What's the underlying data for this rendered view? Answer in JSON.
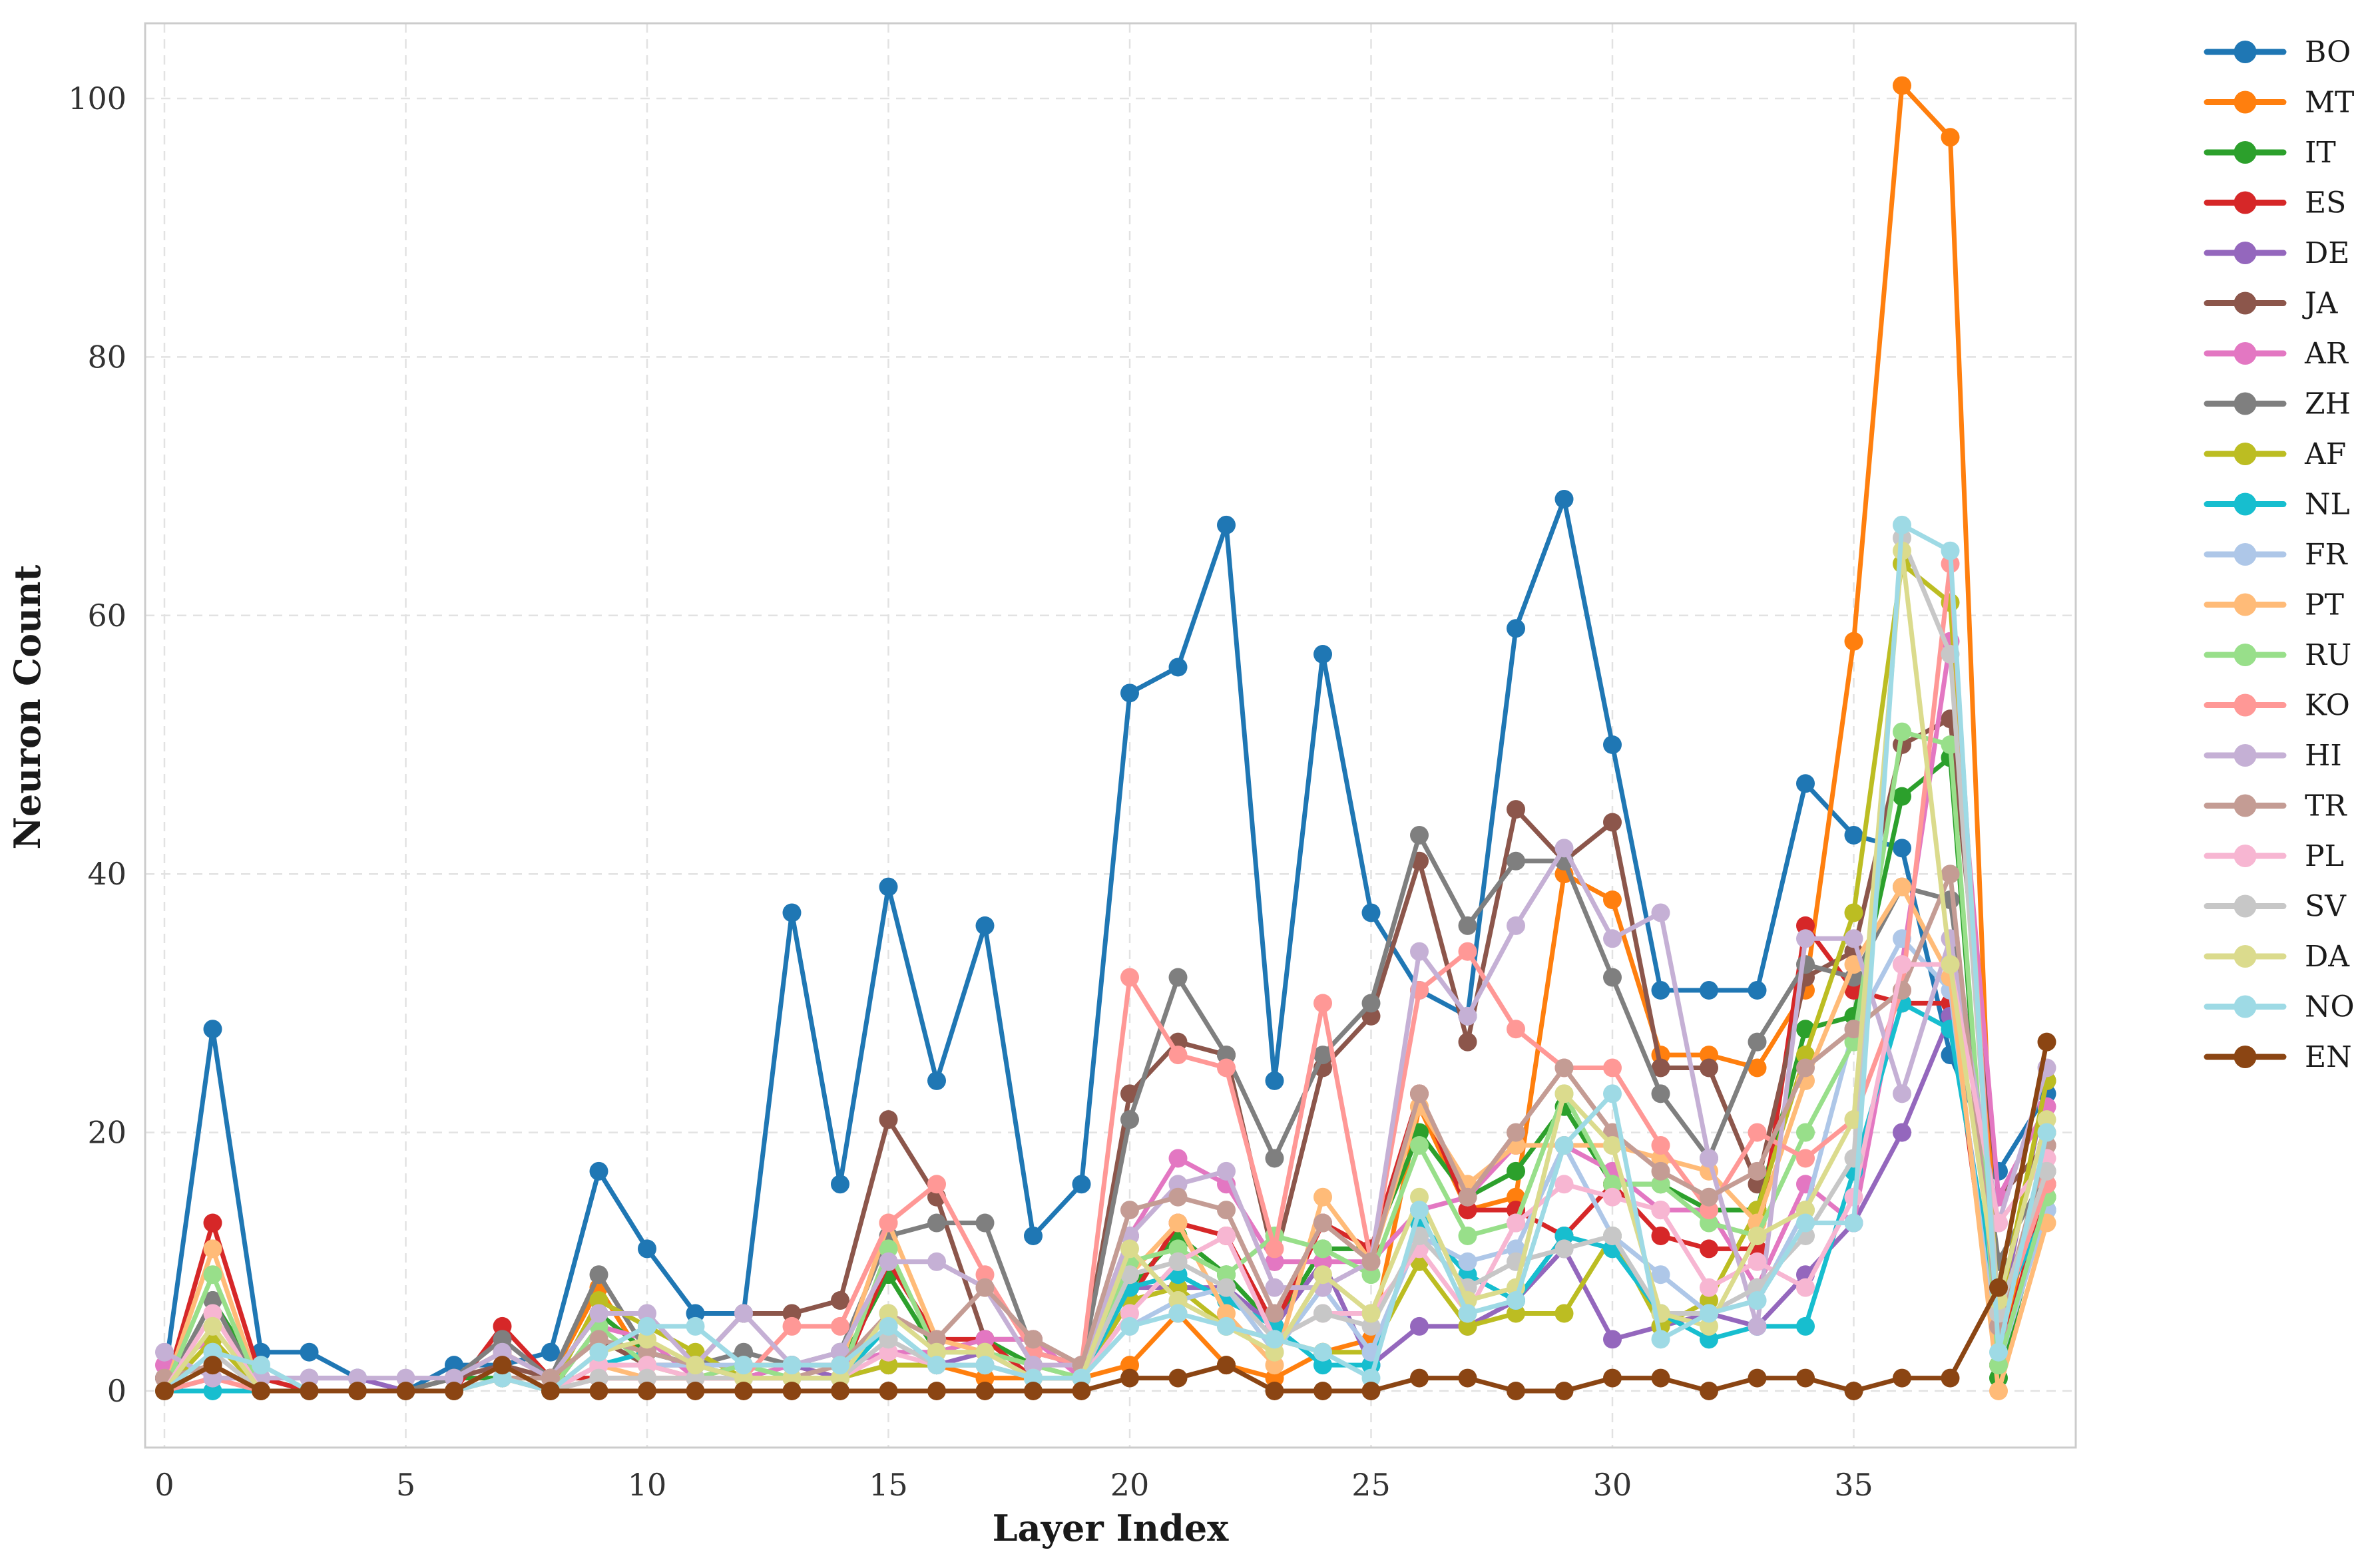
{
  "chart_data": {
    "type": "line",
    "title": "",
    "xlabel": "Layer Index",
    "ylabel": "Neuron Count",
    "x": [
      0,
      1,
      2,
      3,
      4,
      5,
      6,
      7,
      8,
      9,
      10,
      11,
      12,
      13,
      14,
      15,
      16,
      17,
      18,
      19,
      20,
      21,
      22,
      23,
      24,
      25,
      26,
      27,
      28,
      29,
      30,
      31,
      32,
      33,
      34,
      35,
      36,
      37,
      38,
      39
    ],
    "xticks": [
      0,
      5,
      10,
      15,
      20,
      25,
      30,
      35
    ],
    "yticks": [
      0,
      20,
      40,
      60,
      80,
      100
    ],
    "ylim": [
      -6,
      106
    ],
    "grid": "dashed",
    "legend_position": "right",
    "series": [
      {
        "name": "BO",
        "color": "#1f77b4",
        "values": [
          1,
          28,
          3,
          3,
          1,
          0,
          2,
          2,
          3,
          17,
          11,
          6,
          6,
          37,
          16,
          39,
          24,
          36,
          12,
          16,
          54,
          56,
          67,
          24,
          57,
          37,
          31,
          29,
          59,
          69,
          50,
          31,
          31,
          31,
          47,
          43,
          42,
          26,
          17,
          23
        ]
      },
      {
        "name": "MT",
        "color": "#ff7f0e",
        "values": [
          0,
          2,
          0,
          0,
          0,
          0,
          1,
          3,
          1,
          8,
          2,
          1,
          2,
          2,
          1,
          2,
          2,
          1,
          1,
          1,
          2,
          6,
          2,
          1,
          3,
          4,
          22,
          14,
          15,
          40,
          38,
          26,
          26,
          25,
          31,
          58,
          101,
          97,
          2,
          20
        ]
      },
      {
        "name": "IT",
        "color": "#2ca02c",
        "values": [
          0,
          7,
          1,
          0,
          0,
          0,
          1,
          1,
          1,
          6,
          3,
          2,
          1,
          2,
          2,
          9,
          3,
          4,
          2,
          1,
          8,
          12,
          9,
          5,
          11,
          11,
          20,
          15,
          17,
          22,
          16,
          16,
          14,
          14,
          28,
          29,
          46,
          49,
          1,
          15
        ]
      },
      {
        "name": "ES",
        "color": "#d62728",
        "values": [
          0,
          13,
          1,
          0,
          0,
          0,
          0,
          5,
          1,
          1,
          1,
          1,
          1,
          2,
          1,
          10,
          4,
          4,
          1,
          1,
          7,
          13,
          12,
          5,
          13,
          11,
          23,
          14,
          14,
          12,
          16,
          12,
          11,
          11,
          36,
          31,
          30,
          30,
          2,
          16
        ]
      },
      {
        "name": "DE",
        "color": "#9467bd",
        "values": [
          0,
          1,
          1,
          1,
          1,
          0,
          0,
          2,
          0,
          1,
          1,
          1,
          1,
          2,
          1,
          2,
          2,
          3,
          1,
          1,
          8,
          8,
          8,
          5,
          10,
          2,
          5,
          5,
          7,
          11,
          4,
          5,
          6,
          5,
          9,
          13,
          20,
          29,
          5,
          24
        ]
      },
      {
        "name": "JA",
        "color": "#8c564b",
        "values": [
          1,
          2,
          0,
          0,
          0,
          0,
          1,
          2,
          1,
          4,
          2,
          2,
          6,
          6,
          7,
          21,
          15,
          4,
          4,
          2,
          23,
          27,
          26,
          10,
          25,
          29,
          41,
          27,
          45,
          41,
          44,
          25,
          25,
          16,
          32,
          34,
          50,
          52,
          15,
          19
        ]
      },
      {
        "name": "AR",
        "color": "#e377c2",
        "values": [
          2,
          4,
          0,
          0,
          0,
          0,
          0,
          2,
          0,
          5,
          4,
          1,
          1,
          2,
          2,
          3,
          3,
          4,
          4,
          1,
          12,
          18,
          16,
          10,
          10,
          10,
          14,
          15,
          19,
          19,
          17,
          14,
          14,
          8,
          16,
          13,
          33,
          58,
          15,
          22
        ]
      },
      {
        "name": "ZH",
        "color": "#7f7f7f",
        "values": [
          0,
          7,
          0,
          0,
          0,
          0,
          1,
          4,
          1,
          9,
          3,
          2,
          3,
          2,
          3,
          12,
          13,
          13,
          3,
          2,
          21,
          32,
          26,
          18,
          26,
          30,
          43,
          36,
          41,
          41,
          32,
          23,
          18,
          27,
          33,
          32,
          39,
          38,
          10,
          17
        ]
      },
      {
        "name": "AF",
        "color": "#bcbd22",
        "values": [
          0,
          4,
          0,
          0,
          0,
          0,
          0,
          1,
          0,
          7,
          5,
          3,
          1,
          1,
          1,
          2,
          2,
          2,
          1,
          1,
          7,
          8,
          5,
          4,
          3,
          3,
          10,
          5,
          6,
          6,
          12,
          5,
          7,
          14,
          26,
          37,
          64,
          61,
          6,
          24
        ]
      },
      {
        "name": "NL",
        "color": "#17becf",
        "values": [
          0,
          0,
          0,
          0,
          0,
          0,
          0,
          1,
          0,
          2,
          3,
          2,
          1,
          1,
          1,
          5,
          2,
          2,
          1,
          1,
          8,
          9,
          7,
          5,
          2,
          2,
          13,
          9,
          7,
          12,
          11,
          6,
          4,
          5,
          5,
          17,
          30,
          28,
          6,
          14
        ]
      },
      {
        "name": "FR",
        "color": "#aec7e8",
        "values": [
          0,
          2,
          0,
          0,
          0,
          0,
          0,
          1,
          0,
          2,
          2,
          2,
          2,
          1,
          1,
          4,
          2,
          2,
          1,
          1,
          5,
          7,
          8,
          3,
          8,
          3,
          12,
          10,
          11,
          19,
          12,
          9,
          6,
          7,
          14,
          28,
          35,
          31,
          2,
          14
        ]
      },
      {
        "name": "PT",
        "color": "#ffbb78",
        "values": [
          0,
          11,
          0,
          0,
          0,
          0,
          0,
          1,
          0,
          2,
          1,
          1,
          1,
          1,
          2,
          13,
          4,
          3,
          2,
          1,
          9,
          13,
          6,
          2,
          15,
          10,
          22,
          16,
          19,
          19,
          19,
          18,
          17,
          13,
          24,
          33,
          39,
          32,
          0,
          13
        ]
      },
      {
        "name": "RU",
        "color": "#98df8a",
        "values": [
          0,
          9,
          0,
          0,
          0,
          0,
          0,
          1,
          0,
          5,
          2,
          1,
          2,
          1,
          1,
          11,
          3,
          3,
          2,
          1,
          10,
          11,
          9,
          12,
          11,
          9,
          19,
          12,
          13,
          23,
          16,
          16,
          13,
          12,
          20,
          27,
          51,
          50,
          2,
          15
        ]
      },
      {
        "name": "KO",
        "color": "#ff9896",
        "values": [
          0,
          1,
          0,
          0,
          0,
          0,
          0,
          1,
          0,
          1,
          1,
          1,
          1,
          5,
          5,
          13,
          16,
          9,
          3,
          2,
          32,
          26,
          25,
          11,
          30,
          10,
          31,
          34,
          28,
          25,
          25,
          19,
          14,
          20,
          18,
          21,
          31,
          64,
          5,
          16
        ]
      },
      {
        "name": "HI",
        "color": "#c5b0d5",
        "values": [
          3,
          1,
          1,
          1,
          1,
          1,
          1,
          3,
          1,
          6,
          6,
          2,
          6,
          2,
          3,
          10,
          10,
          8,
          2,
          2,
          12,
          16,
          17,
          8,
          8,
          10,
          34,
          29,
          36,
          42,
          35,
          37,
          18,
          5,
          35,
          35,
          23,
          35,
          13,
          25
        ]
      },
      {
        "name": "TR",
        "color": "#c49c94",
        "values": [
          1,
          2,
          0,
          0,
          0,
          0,
          0,
          1,
          1,
          4,
          3,
          2,
          1,
          1,
          2,
          6,
          4,
          8,
          4,
          2,
          14,
          15,
          14,
          6,
          13,
          10,
          23,
          15,
          20,
          25,
          20,
          17,
          15,
          17,
          25,
          28,
          31,
          40,
          5,
          19
        ]
      },
      {
        "name": "PL",
        "color": "#f7b6d2",
        "values": [
          0,
          6,
          0,
          0,
          0,
          0,
          0,
          1,
          0,
          2,
          2,
          1,
          1,
          1,
          1,
          3,
          2,
          2,
          1,
          1,
          6,
          10,
          12,
          4,
          6,
          6,
          11,
          6,
          13,
          16,
          15,
          14,
          8,
          10,
          8,
          15,
          33,
          33,
          13,
          18
        ]
      },
      {
        "name": "SV",
        "color": "#c7c7c7",
        "values": [
          0,
          3,
          0,
          0,
          0,
          0,
          0,
          1,
          0,
          1,
          1,
          1,
          1,
          1,
          1,
          4,
          2,
          2,
          1,
          1,
          9,
          10,
          8,
          4,
          6,
          5,
          12,
          8,
          10,
          11,
          12,
          6,
          6,
          8,
          12,
          18,
          66,
          57,
          6,
          17
        ]
      },
      {
        "name": "DA",
        "color": "#dbdb8d",
        "values": [
          0,
          5,
          0,
          0,
          0,
          0,
          0,
          1,
          0,
          3,
          4,
          2,
          1,
          1,
          1,
          6,
          3,
          3,
          1,
          1,
          11,
          7,
          5,
          3,
          9,
          6,
          15,
          7,
          8,
          23,
          19,
          6,
          5,
          12,
          14,
          21,
          65,
          33,
          7,
          21
        ]
      },
      {
        "name": "NO",
        "color": "#9edae5",
        "values": [
          0,
          3,
          2,
          0,
          0,
          0,
          0,
          1,
          0,
          3,
          5,
          5,
          2,
          2,
          2,
          5,
          2,
          2,
          1,
          1,
          5,
          6,
          5,
          4,
          3,
          1,
          14,
          6,
          7,
          19,
          23,
          4,
          6,
          7,
          13,
          13,
          67,
          65,
          3,
          20
        ]
      },
      {
        "name": "EN",
        "color": "#8B4513",
        "values": [
          0,
          2,
          0,
          0,
          0,
          0,
          0,
          2,
          0,
          0,
          0,
          0,
          0,
          0,
          0,
          0,
          0,
          0,
          0,
          0,
          1,
          1,
          2,
          0,
          0,
          0,
          1,
          1,
          0,
          0,
          1,
          1,
          0,
          1,
          1,
          0,
          1,
          1,
          8,
          27
        ]
      }
    ]
  },
  "axes": {
    "xlabel": "Layer Index",
    "ylabel": "Neuron Count"
  },
  "style": {
    "grid_color": "#e2e2e2",
    "spine_color": "#cccccc",
    "tick_color": "#333333",
    "label_color": "#1a1a1a",
    "background": "#ffffff"
  }
}
